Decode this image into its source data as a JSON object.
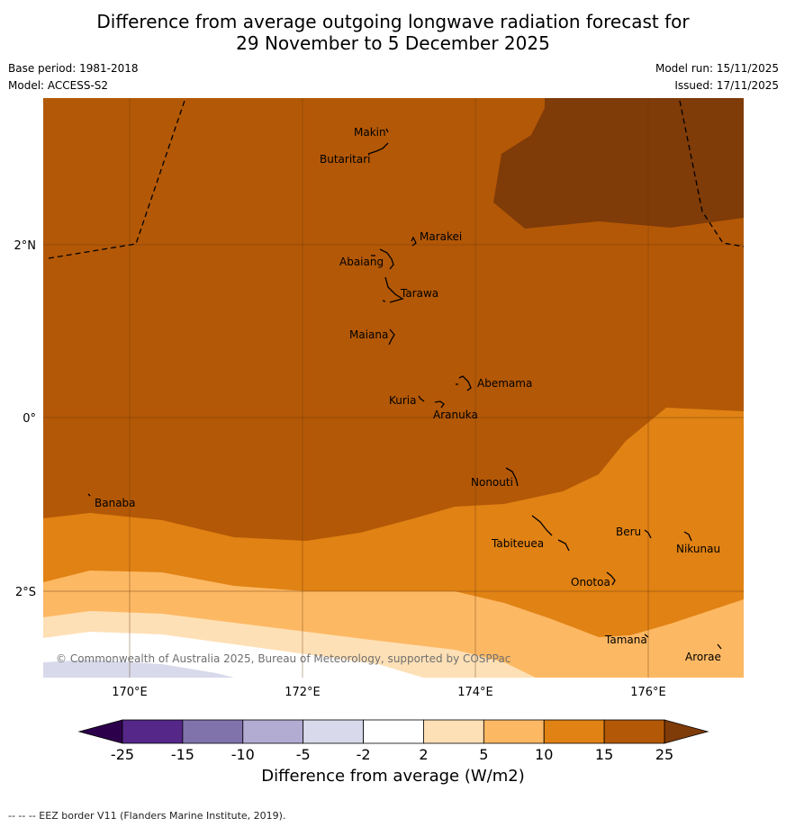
{
  "title_line1": "Difference from average outgoing longwave radiation forecast for",
  "title_line2": "29 November to 5 December 2025",
  "base_period": "Base period: 1981-2018",
  "model": "Model: ACCESS-S2",
  "model_run": "Model run: 15/11/2025",
  "issued": "Issued: 17/11/2025",
  "copyright": "© Commonwealth of Australia 2025, Bureau of Meteorology, supported by COSPPac",
  "axes": {
    "lon_labels": [
      "170°E",
      "172°E",
      "174°E",
      "176°E"
    ],
    "lat_labels": [
      "2°N",
      "0°",
      "2°S"
    ]
  },
  "islands": [
    "Makin",
    "Butaritari",
    "Marakei",
    "Abaiang",
    "Tarawa",
    "Maiana",
    "Abemama",
    "Kuria",
    "Aranuka",
    "Nonouti",
    "Banaba",
    "Tabiteuea",
    "Beru",
    "Nikunau",
    "Onotoa",
    "Tamana",
    "Arorae"
  ],
  "colorbar": {
    "ticks": [
      "-25",
      "-15",
      "-10",
      "-5",
      "-2",
      "2",
      "5",
      "10",
      "15",
      "25"
    ],
    "colors": [
      "#542788",
      "#8073ac",
      "#b2abd2",
      "#d8daeb",
      "#ffffff",
      "#fee0b6",
      "#fdb863",
      "#e08214",
      "#b35806"
    ],
    "under_color": "#2d004b",
    "over_color": "#7f3b08",
    "label": "Difference from average (W/m2)"
  },
  "footer": "--  --  -- EEZ border V11 (Flanders Marine Institute, 2019)."
}
